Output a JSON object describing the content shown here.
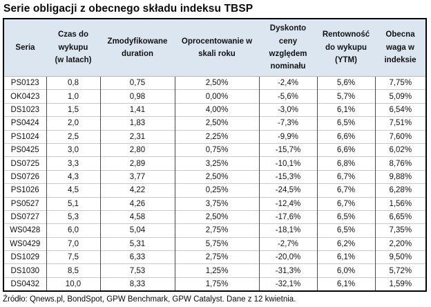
{
  "title": "Serie obligacji z obecnego składu indeksu TBSP",
  "source_note": "Źródło: Qnews.pl, BondSpot, GPW Benchmark, GPW Catalyst. Dane z 12 kwietnia.",
  "colors": {
    "header_bg": "#DCE6F1",
    "outer_border": "#000000",
    "column_divider": "#474747",
    "row_divider": "#C9C9C9"
  },
  "chart_data": {
    "type": "table",
    "title": "Serie obligacji z obecnego składu indeksu TBSP",
    "columns": [
      "Seria",
      "Czas do wykupu (w latach)",
      "Zmodyfikowane duration",
      "Oprocentowanie w skali roku",
      "Dyskonto ceny względem nominału",
      "Rentowność do wykupu (YTM)",
      "Obecna waga w indeksie"
    ],
    "rows": [
      [
        "PS0123",
        "0,8",
        "0,75",
        "2,50%",
        "-2,4%",
        "5,6%",
        "7,75%"
      ],
      [
        "OK0423",
        "1,0",
        "0,98",
        "0,00%",
        "-5,6%",
        "5,7%",
        "5,09%"
      ],
      [
        "DS1023",
        "1,5",
        "1,41",
        "4,00%",
        "-3,0%",
        "6,1%",
        "6,54%"
      ],
      [
        "PS0424",
        "2,0",
        "1,83",
        "2,50%",
        "-7,3%",
        "6,5%",
        "7,51%"
      ],
      [
        "PS1024",
        "2,5",
        "2,31",
        "2,25%",
        "-9,9%",
        "6,6%",
        "7,60%"
      ],
      [
        "PS0425",
        "3,0",
        "2,80",
        "0,75%",
        "-15,7%",
        "6,6%",
        "6,02%"
      ],
      [
        "DS0725",
        "3,3",
        "2,89",
        "3,25%",
        "-10,1%",
        "6,8%",
        "8,76%"
      ],
      [
        "DS0726",
        "4,3",
        "3,77",
        "2,50%",
        "-15,3%",
        "6,7%",
        "9,88%"
      ],
      [
        "PS1026",
        "4,5",
        "4,22",
        "0,25%",
        "-24,5%",
        "6,7%",
        "6,28%"
      ],
      [
        "PS0527",
        "5,1",
        "4,26",
        "3,75%",
        "-12,4%",
        "6,7%",
        "1,56%"
      ],
      [
        "DS0727",
        "5,3",
        "4,58",
        "2,50%",
        "-17,6%",
        "6,5%",
        "6,65%"
      ],
      [
        "WS0428",
        "6,0",
        "5,04",
        "2,75%",
        "-18,1%",
        "6,5%",
        "7,35%"
      ],
      [
        "WS0429",
        "7,0",
        "5,31",
        "5,75%",
        "-2,7%",
        "6,2%",
        "2,20%"
      ],
      [
        "DS1029",
        "7,5",
        "6,33",
        "2,75%",
        "-20,0%",
        "6,1%",
        "9,50%"
      ],
      [
        "DS1030",
        "8,5",
        "7,53",
        "1,25%",
        "-31,3%",
        "6,0%",
        "5,72%"
      ],
      [
        "DS0432",
        "10,0",
        "8,33",
        "1,75%",
        "-32,1%",
        "6,1%",
        "1,59%"
      ]
    ]
  }
}
